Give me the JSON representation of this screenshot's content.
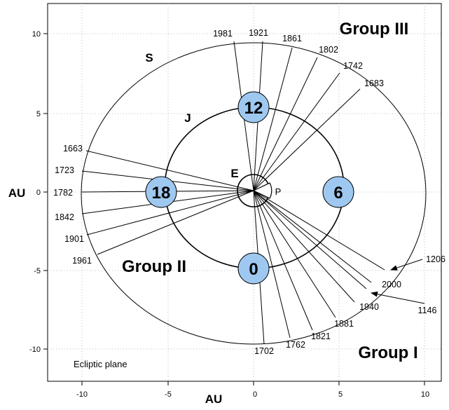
{
  "axes": {
    "x_label": "AU",
    "y_label": "AU",
    "x_ticks": [
      {
        "value": -10,
        "label": "-10"
      },
      {
        "value": -5,
        "label": "-5"
      },
      {
        "value": 0,
        "label": "0"
      },
      {
        "value": 5,
        "label": "5"
      },
      {
        "value": 10,
        "label": "10"
      }
    ],
    "y_ticks": [
      {
        "value": 10,
        "label": "10"
      },
      {
        "value": 5,
        "label": "5"
      },
      {
        "value": 0,
        "label": "0"
      },
      {
        "value": -5,
        "label": "-5"
      },
      {
        "value": -10,
        "label": "-10"
      }
    ],
    "range_x": [
      -12,
      11
    ],
    "range_y": [
      -12,
      12
    ],
    "grid": "dotted"
  },
  "plane_label": "Ecliptic plane",
  "orbits": {
    "earth_label": "E",
    "jupiter_label": "J",
    "saturn_label": "S",
    "perihelion_label": "P"
  },
  "jupiter_positions": [
    "0",
    "6",
    "12",
    "18"
  ],
  "groups": {
    "group1": "Group I",
    "group2": "Group II",
    "group3": "Group III"
  },
  "years": {
    "group3": [
      "1981",
      "1921",
      "1861",
      "1802",
      "1742",
      "1683"
    ],
    "group2": [
      "1663",
      "1723",
      "1782",
      "1842",
      "1901",
      "1961"
    ],
    "group1": [
      "1702",
      "1762",
      "1821",
      "1881",
      "1940",
      "2000",
      "1206",
      "1146"
    ]
  }
}
